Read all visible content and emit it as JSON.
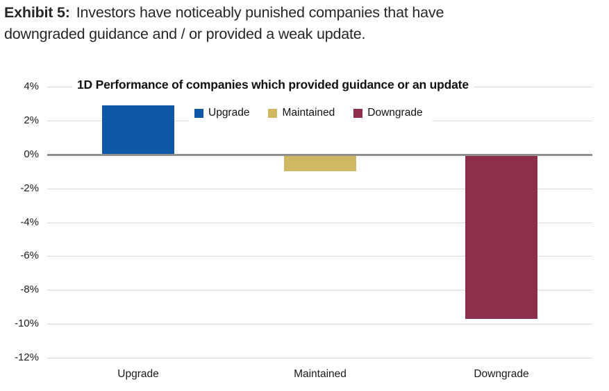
{
  "header": {
    "exhibit_label": "Exhibit 5:",
    "line1_rest": "Investors have noticeably punished companies that have",
    "line2": "downgraded guidance and / or provided a weak update."
  },
  "chart_data": {
    "type": "bar",
    "title": "1D Performance of companies which provided guidance or an update",
    "categories": [
      "Upgrade",
      "Maintained",
      "Downgrade"
    ],
    "values": [
      2.9,
      -1.0,
      -9.7
    ],
    "unit": "%",
    "xlabel": "",
    "ylabel": "",
    "ylim": [
      -12,
      4
    ],
    "ytick_step": 2,
    "ytick_labels": [
      "4%",
      "2%",
      "0%",
      "-2%",
      "-4%",
      "-6%",
      "-8%",
      "-10%",
      "-12%"
    ],
    "grid": true,
    "legend_position": "top-inside",
    "legend": [
      {
        "label": "Upgrade",
        "color": "#0F58A8"
      },
      {
        "label": "Maintained",
        "color": "#D2B763"
      },
      {
        "label": "Downgrade",
        "color": "#8D2F4B"
      }
    ],
    "bar_colors": [
      "#0F58A8",
      "#D2B763",
      "#8D2F4B"
    ],
    "gridline_color": "#D9D9D9",
    "zero_line_color": "#8F8F8F"
  }
}
